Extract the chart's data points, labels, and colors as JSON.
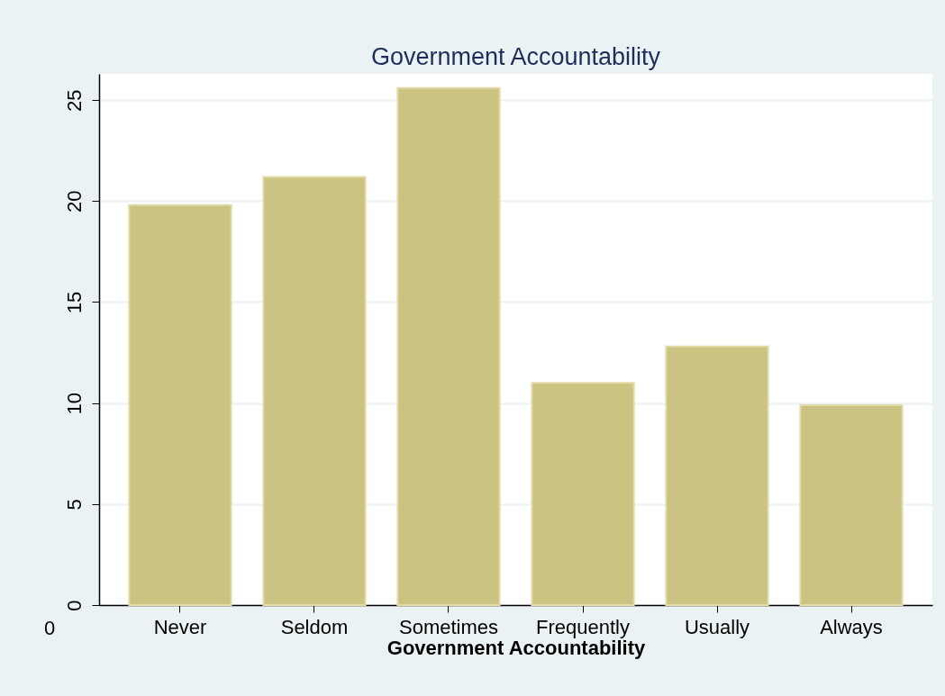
{
  "chart_data": {
    "type": "bar",
    "title": "Government Accountability",
    "xlabel": "Government Accountability",
    "categories": [
      "Never",
      "Seldom",
      "Sometimes",
      "Frequently",
      "Usually",
      "Always"
    ],
    "values": [
      19.8,
      21.2,
      25.6,
      11.0,
      12.8,
      9.9
    ],
    "color": "#cbc382",
    "ylim": [
      0,
      26.3
    ],
    "yticks": [
      0,
      5,
      10,
      15,
      20,
      25
    ],
    "grid": "y",
    "annotations": [
      "0"
    ]
  }
}
